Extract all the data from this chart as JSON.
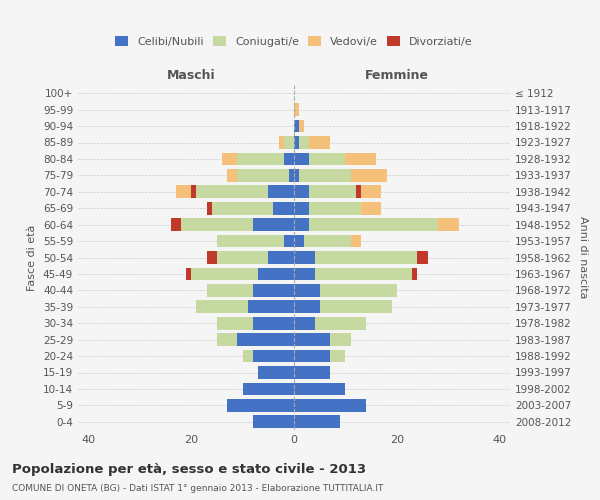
{
  "age_groups_bottom_to_top": [
    "0-4",
    "5-9",
    "10-14",
    "15-19",
    "20-24",
    "25-29",
    "30-34",
    "35-39",
    "40-44",
    "45-49",
    "50-54",
    "55-59",
    "60-64",
    "65-69",
    "70-74",
    "75-79",
    "80-84",
    "85-89",
    "90-94",
    "95-99",
    "100+"
  ],
  "birth_years_bottom_to_top": [
    "2008-2012",
    "2003-2007",
    "1998-2002",
    "1993-1997",
    "1988-1992",
    "1983-1987",
    "1978-1982",
    "1973-1977",
    "1968-1972",
    "1963-1967",
    "1958-1962",
    "1953-1957",
    "1948-1952",
    "1943-1947",
    "1938-1942",
    "1933-1937",
    "1928-1932",
    "1923-1927",
    "1918-1922",
    "1913-1917",
    "≤ 1912"
  ],
  "males": {
    "celibi": [
      8,
      13,
      10,
      7,
      8,
      11,
      8,
      9,
      8,
      7,
      5,
      2,
      8,
      4,
      5,
      1,
      2,
      0,
      0,
      0,
      0
    ],
    "coniugati": [
      0,
      0,
      0,
      0,
      2,
      4,
      7,
      10,
      9,
      13,
      10,
      13,
      14,
      12,
      14,
      10,
      9,
      2,
      0,
      0,
      0
    ],
    "vedovi": [
      0,
      0,
      0,
      0,
      0,
      0,
      0,
      0,
      0,
      0,
      0,
      0,
      0,
      0,
      3,
      2,
      3,
      1,
      0,
      0,
      0
    ],
    "divorziati": [
      0,
      0,
      0,
      0,
      0,
      0,
      0,
      0,
      0,
      1,
      2,
      0,
      2,
      1,
      1,
      0,
      0,
      0,
      0,
      0,
      0
    ]
  },
  "females": {
    "nubili": [
      9,
      14,
      10,
      7,
      7,
      7,
      4,
      5,
      5,
      4,
      4,
      2,
      3,
      3,
      3,
      1,
      3,
      1,
      1,
      0,
      0
    ],
    "coniugate": [
      0,
      0,
      0,
      0,
      3,
      4,
      10,
      14,
      15,
      19,
      20,
      9,
      25,
      10,
      9,
      10,
      7,
      2,
      0,
      0,
      0
    ],
    "vedove": [
      0,
      0,
      0,
      0,
      0,
      0,
      0,
      0,
      0,
      0,
      0,
      2,
      4,
      4,
      4,
      7,
      6,
      4,
      1,
      1,
      0
    ],
    "divorziate": [
      0,
      0,
      0,
      0,
      0,
      0,
      0,
      0,
      0,
      1,
      2,
      0,
      0,
      0,
      1,
      0,
      0,
      0,
      0,
      0,
      0
    ]
  },
  "colors": {
    "celibi_nubili": "#4472C4",
    "coniugati": "#C5D9A0",
    "vedovi": "#F5C07A",
    "divorziati": "#C0392B"
  },
  "xlim": [
    -42,
    42
  ],
  "xticks": [
    -40,
    -20,
    0,
    20,
    40
  ],
  "xticklabels": [
    "40",
    "20",
    "0",
    "20",
    "40"
  ],
  "title": "Popolazione per età, sesso e stato civile - 2013",
  "subtitle": "COMUNE DI ONETA (BG) - Dati ISTAT 1° gennaio 2013 - Elaborazione TUTTITALIA.IT",
  "ylabel_left": "Fasce di età",
  "ylabel_right": "Anni di nascita",
  "label_maschi": "Maschi",
  "label_femmine": "Femmine",
  "legend_labels": [
    "Celibi/Nubili",
    "Coniugati/e",
    "Vedovi/e",
    "Divorziati/e"
  ],
  "bg_color": "#f5f5f5",
  "grid_color": "#cccccc"
}
